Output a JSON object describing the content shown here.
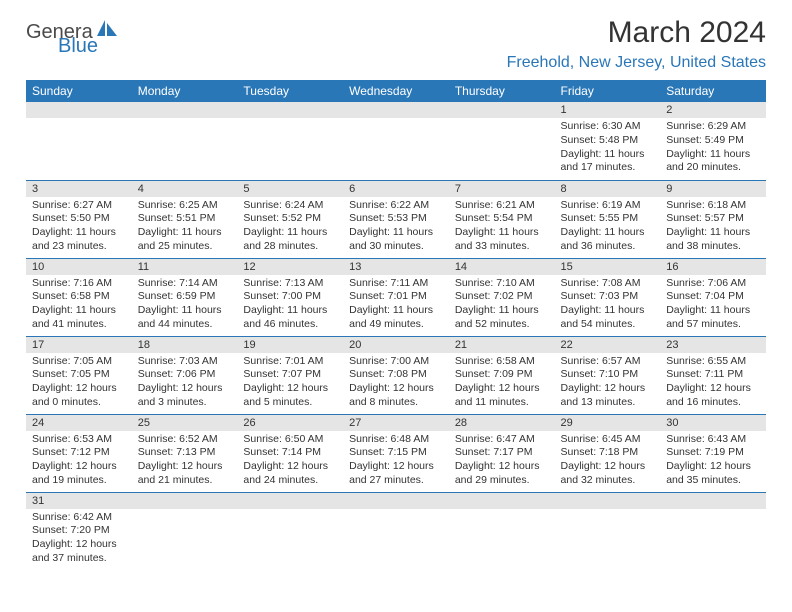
{
  "logo": {
    "part1": "Genera",
    "part2": "Blue"
  },
  "title": "March 2024",
  "location": "Freehold, New Jersey, United States",
  "colors": {
    "header_bg": "#2a77b8",
    "header_text": "#ffffff",
    "daynum_bg": "#e5e5e5",
    "border": "#2a77b8",
    "text": "#333333",
    "accent": "#2a77b8"
  },
  "weekdays": [
    "Sunday",
    "Monday",
    "Tuesday",
    "Wednesday",
    "Thursday",
    "Friday",
    "Saturday"
  ],
  "weeks": [
    [
      null,
      null,
      null,
      null,
      null,
      {
        "n": "1",
        "sr": "6:30 AM",
        "ss": "5:48 PM",
        "dl": "11 hours and 17 minutes."
      },
      {
        "n": "2",
        "sr": "6:29 AM",
        "ss": "5:49 PM",
        "dl": "11 hours and 20 minutes."
      }
    ],
    [
      {
        "n": "3",
        "sr": "6:27 AM",
        "ss": "5:50 PM",
        "dl": "11 hours and 23 minutes."
      },
      {
        "n": "4",
        "sr": "6:25 AM",
        "ss": "5:51 PM",
        "dl": "11 hours and 25 minutes."
      },
      {
        "n": "5",
        "sr": "6:24 AM",
        "ss": "5:52 PM",
        "dl": "11 hours and 28 minutes."
      },
      {
        "n": "6",
        "sr": "6:22 AM",
        "ss": "5:53 PM",
        "dl": "11 hours and 30 minutes."
      },
      {
        "n": "7",
        "sr": "6:21 AM",
        "ss": "5:54 PM",
        "dl": "11 hours and 33 minutes."
      },
      {
        "n": "8",
        "sr": "6:19 AM",
        "ss": "5:55 PM",
        "dl": "11 hours and 36 minutes."
      },
      {
        "n": "9",
        "sr": "6:18 AM",
        "ss": "5:57 PM",
        "dl": "11 hours and 38 minutes."
      }
    ],
    [
      {
        "n": "10",
        "sr": "7:16 AM",
        "ss": "6:58 PM",
        "dl": "11 hours and 41 minutes."
      },
      {
        "n": "11",
        "sr": "7:14 AM",
        "ss": "6:59 PM",
        "dl": "11 hours and 44 minutes."
      },
      {
        "n": "12",
        "sr": "7:13 AM",
        "ss": "7:00 PM",
        "dl": "11 hours and 46 minutes."
      },
      {
        "n": "13",
        "sr": "7:11 AM",
        "ss": "7:01 PM",
        "dl": "11 hours and 49 minutes."
      },
      {
        "n": "14",
        "sr": "7:10 AM",
        "ss": "7:02 PM",
        "dl": "11 hours and 52 minutes."
      },
      {
        "n": "15",
        "sr": "7:08 AM",
        "ss": "7:03 PM",
        "dl": "11 hours and 54 minutes."
      },
      {
        "n": "16",
        "sr": "7:06 AM",
        "ss": "7:04 PM",
        "dl": "11 hours and 57 minutes."
      }
    ],
    [
      {
        "n": "17",
        "sr": "7:05 AM",
        "ss": "7:05 PM",
        "dl": "12 hours and 0 minutes."
      },
      {
        "n": "18",
        "sr": "7:03 AM",
        "ss": "7:06 PM",
        "dl": "12 hours and 3 minutes."
      },
      {
        "n": "19",
        "sr": "7:01 AM",
        "ss": "7:07 PM",
        "dl": "12 hours and 5 minutes."
      },
      {
        "n": "20",
        "sr": "7:00 AM",
        "ss": "7:08 PM",
        "dl": "12 hours and 8 minutes."
      },
      {
        "n": "21",
        "sr": "6:58 AM",
        "ss": "7:09 PM",
        "dl": "12 hours and 11 minutes."
      },
      {
        "n": "22",
        "sr": "6:57 AM",
        "ss": "7:10 PM",
        "dl": "12 hours and 13 minutes."
      },
      {
        "n": "23",
        "sr": "6:55 AM",
        "ss": "7:11 PM",
        "dl": "12 hours and 16 minutes."
      }
    ],
    [
      {
        "n": "24",
        "sr": "6:53 AM",
        "ss": "7:12 PM",
        "dl": "12 hours and 19 minutes."
      },
      {
        "n": "25",
        "sr": "6:52 AM",
        "ss": "7:13 PM",
        "dl": "12 hours and 21 minutes."
      },
      {
        "n": "26",
        "sr": "6:50 AM",
        "ss": "7:14 PM",
        "dl": "12 hours and 24 minutes."
      },
      {
        "n": "27",
        "sr": "6:48 AM",
        "ss": "7:15 PM",
        "dl": "12 hours and 27 minutes."
      },
      {
        "n": "28",
        "sr": "6:47 AM",
        "ss": "7:17 PM",
        "dl": "12 hours and 29 minutes."
      },
      {
        "n": "29",
        "sr": "6:45 AM",
        "ss": "7:18 PM",
        "dl": "12 hours and 32 minutes."
      },
      {
        "n": "30",
        "sr": "6:43 AM",
        "ss": "7:19 PM",
        "dl": "12 hours and 35 minutes."
      }
    ],
    [
      {
        "n": "31",
        "sr": "6:42 AM",
        "ss": "7:20 PM",
        "dl": "12 hours and 37 minutes."
      },
      null,
      null,
      null,
      null,
      null,
      null
    ]
  ],
  "labels": {
    "sunrise": "Sunrise: ",
    "sunset": "Sunset: ",
    "daylight": "Daylight: "
  }
}
